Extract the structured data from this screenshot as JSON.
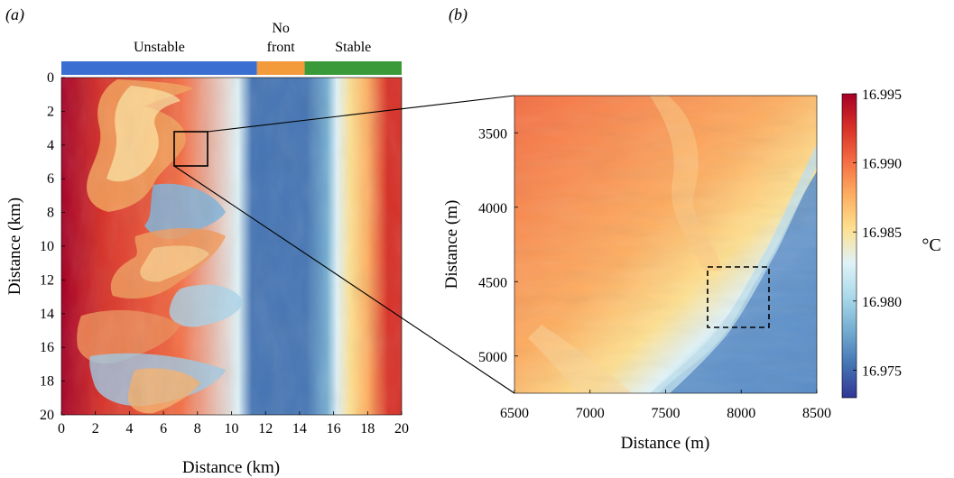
{
  "panel_labels": {
    "a": "(a)",
    "b": "(b)"
  },
  "chart_data": [
    {
      "type": "heatmap",
      "panel": "(a)",
      "xlabel": "Distance (km)",
      "ylabel": "Distance (km)",
      "xlim": [
        0,
        20
      ],
      "ylim": [
        0,
        20
      ],
      "y_inverted": true,
      "xticks": [
        "0",
        "2",
        "4",
        "6",
        "8",
        "10",
        "12",
        "14",
        "16",
        "18",
        "20"
      ],
      "yticks": [
        "0",
        "2",
        "4",
        "6",
        "8",
        "10",
        "12",
        "14",
        "16",
        "18",
        "20"
      ],
      "regions": [
        {
          "label": "Unstable",
          "x_range": [
            0,
            11.5
          ],
          "color": "#3a6fd1"
        },
        {
          "label": "No front",
          "x_range": [
            11.5,
            14.3
          ],
          "color": "#f39a3a"
        },
        {
          "label": "Stable",
          "x_range": [
            14.3,
            20
          ],
          "color": "#3a9a3a"
        }
      ],
      "zoom_box": {
        "x_range": [
          6.7,
          8.7
        ],
        "y_range": [
          3.2,
          5.2
        ]
      }
    },
    {
      "type": "heatmap",
      "panel": "(b)",
      "xlabel": "Distance (m)",
      "ylabel": "Distance (m)",
      "xlim": [
        6500,
        8500
      ],
      "ylim": [
        3250,
        5250
      ],
      "y_inverted": true,
      "xticks": [
        "6500",
        "7000",
        "7500",
        "8000",
        "8500"
      ],
      "yticks": [
        "3500",
        "4000",
        "4500",
        "5000"
      ],
      "dashed_box": {
        "x_range": [
          7800,
          8200
        ],
        "y_range": [
          4300,
          4700
        ]
      },
      "colorbar": {
        "min": 16.973,
        "max": 16.995,
        "ticks": [
          "16.975",
          "16.980",
          "16.985",
          "16.990",
          "16.995"
        ],
        "unit": "°C",
        "colors": [
          "#313695",
          "#4575b4",
          "#74add1",
          "#abd9e9",
          "#e0f3f8",
          "#fee090",
          "#fdae61",
          "#f46d43",
          "#d73027",
          "#a50026"
        ]
      }
    }
  ]
}
